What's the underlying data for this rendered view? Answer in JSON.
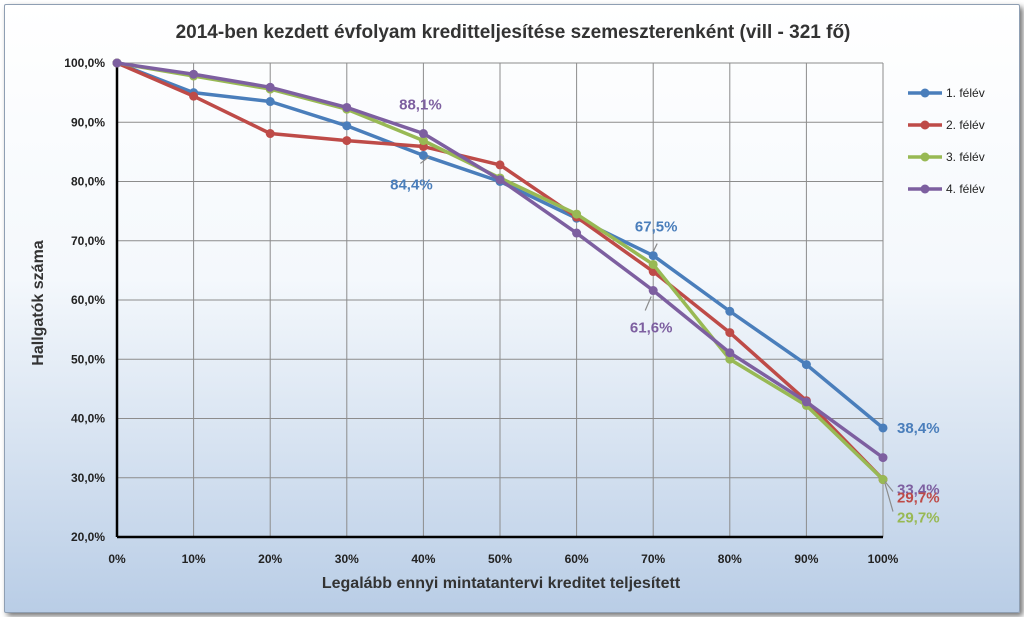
{
  "chart_data": {
    "type": "line",
    "title": "2014-ben kezdett évfolyam kreditteljesítése szemeszterenként (vill - 321 fő)",
    "xlabel": "Legalább ennyi mintatantervi kreditet teljesített",
    "ylabel": "Hallgatók száma",
    "categories": [
      "0%",
      "10%",
      "20%",
      "30%",
      "40%",
      "50%",
      "60%",
      "70%",
      "80%",
      "90%",
      "100%"
    ],
    "y_ticks": [
      "20,0%",
      "30,0%",
      "40,0%",
      "50,0%",
      "60,0%",
      "70,0%",
      "80,0%",
      "90,0%",
      "100,0%"
    ],
    "ylim": [
      20,
      100
    ],
    "grid": true,
    "legend_position": "right",
    "series": [
      {
        "name": "1. félév",
        "color": "#4a7ebb",
        "values": [
          100,
          95.0,
          93.5,
          89.4,
          84.4,
          80.0,
          73.8,
          67.5,
          58.1,
          49.1,
          38.4
        ]
      },
      {
        "name": "2. félév",
        "color": "#be4b48",
        "values": [
          100,
          94.4,
          88.1,
          86.9,
          85.9,
          82.8,
          74.0,
          64.8,
          54.5,
          43.0,
          29.7
        ]
      },
      {
        "name": "3. félév",
        "color": "#98b954",
        "values": [
          100,
          97.8,
          95.6,
          92.2,
          86.9,
          80.6,
          74.5,
          66.0,
          50.0,
          42.2,
          29.7
        ]
      },
      {
        "name": "4. félév",
        "color": "#7d5fa0",
        "values": [
          100,
          98.1,
          95.9,
          92.5,
          88.1,
          80.3,
          71.3,
          61.6,
          51.1,
          42.8,
          33.4
        ]
      }
    ],
    "data_labels": [
      {
        "text": "88,1%",
        "series": 3,
        "index": 4
      },
      {
        "text": "84,4%",
        "series": 0,
        "index": 4
      },
      {
        "text": "67,5%",
        "series": 0,
        "index": 7
      },
      {
        "text": "61,6%",
        "series": 3,
        "index": 7
      },
      {
        "text": "38,4%",
        "series": 0,
        "index": 10
      },
      {
        "text": "33,4%",
        "series": 3,
        "index": 10
      },
      {
        "text": "29,7%",
        "series": 1,
        "index": 10
      },
      {
        "text": "29,7%",
        "series": 2,
        "index": 10
      }
    ]
  }
}
